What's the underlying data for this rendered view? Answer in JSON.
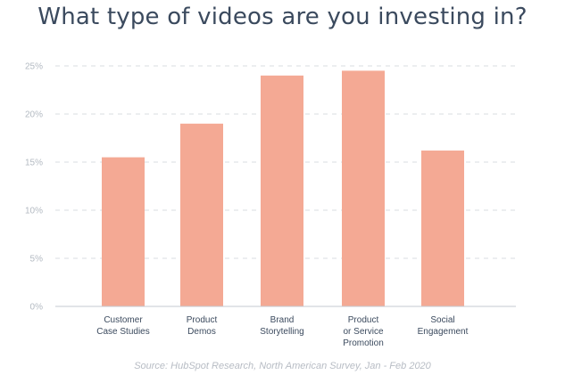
{
  "chart_data": {
    "type": "bar",
    "title": "What type of videos are you investing in?",
    "source": "Source: HubSpot Research, North American Survey, Jan - Feb 2020",
    "categories": [
      [
        "Customer",
        "Case Studies"
      ],
      [
        "Product",
        "Demos"
      ],
      [
        "Brand",
        "Storytelling"
      ],
      [
        "Product",
        "or Service",
        "Promotion"
      ],
      [
        "Social",
        "Engagement"
      ]
    ],
    "values": [
      15.5,
      19,
      24,
      24.5,
      16.2
    ],
    "ylim": [
      0,
      25
    ],
    "yticks": [
      0,
      5,
      10,
      15,
      20,
      25
    ],
    "ytick_labels": [
      "0%",
      "5%",
      "10%",
      "15%",
      "20%",
      "25%"
    ],
    "grid": true,
    "colors": {
      "bar": "#f4a994",
      "title": "#3b4a5e",
      "grid": "#d9dde2"
    }
  }
}
